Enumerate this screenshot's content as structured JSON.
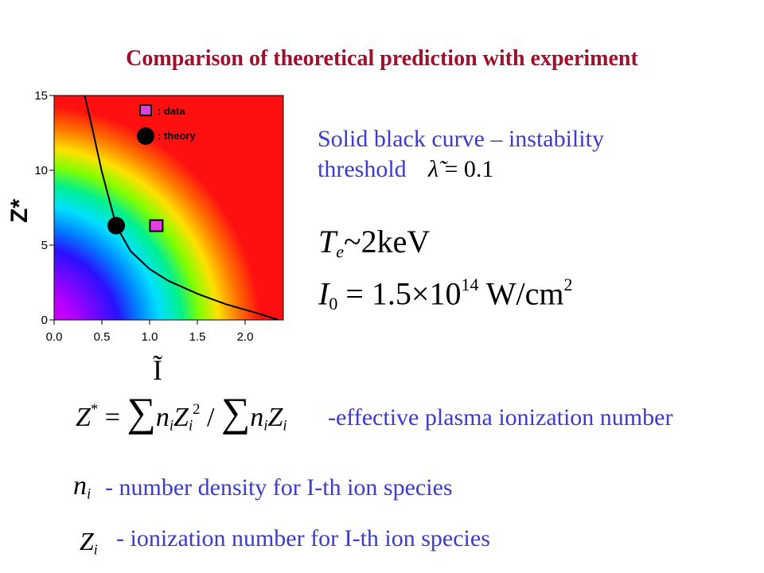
{
  "title": "Comparison of theoretical prediction with experiment",
  "chart_data": {
    "type": "heatmap",
    "xlabel": "Ĩ",
    "ylabel": "Z*",
    "xlim": [
      0,
      2.4
    ],
    "ylim": [
      0,
      15
    ],
    "x_ticks": [
      "0.0",
      "0.5",
      "1.0",
      "1.5",
      "2.0"
    ],
    "y_ticks": [
      "0",
      "5",
      "10",
      "15"
    ],
    "legend": {
      "placement": "top-right",
      "entries": [
        {
          "marker": "square",
          "label": ": data"
        },
        {
          "marker": "circle",
          "label": ": theory"
        }
      ]
    },
    "data_point": {
      "label": "data",
      "x": 1.07,
      "y": 6.3
    },
    "theory_point": {
      "label": "theory",
      "x": 0.65,
      "y": 6.3
    },
    "threshold_curve": {
      "x": [
        0.32,
        0.4,
        0.5,
        0.6,
        0.65,
        0.8,
        1.0,
        1.2,
        1.5,
        1.8,
        2.1,
        2.35
      ],
      "y": [
        15,
        12.8,
        9.9,
        7.5,
        6.3,
        4.6,
        3.4,
        2.6,
        1.75,
        1.05,
        0.5,
        0
      ]
    }
  },
  "text": {
    "desc_line1": "Solid black curve – instability",
    "desc_line2": "threshold",
    "lambda_eq": "= 0.1",
    "te_lhs": "T",
    "te_sub": "e",
    "te_rhs": "~2keV",
    "i0_lhs": "I",
    "i0_sub": "0",
    "i0_mid": "= 1.5×10",
    "i0_exp": "14",
    "i0_unit": "W/cm",
    "i0_unit_exp": "2",
    "z_desc": "-effective plasma ionization number",
    "n_desc": "- number density for I-th ion species",
    "zi_desc": "- ionization number for I-th ion species"
  }
}
